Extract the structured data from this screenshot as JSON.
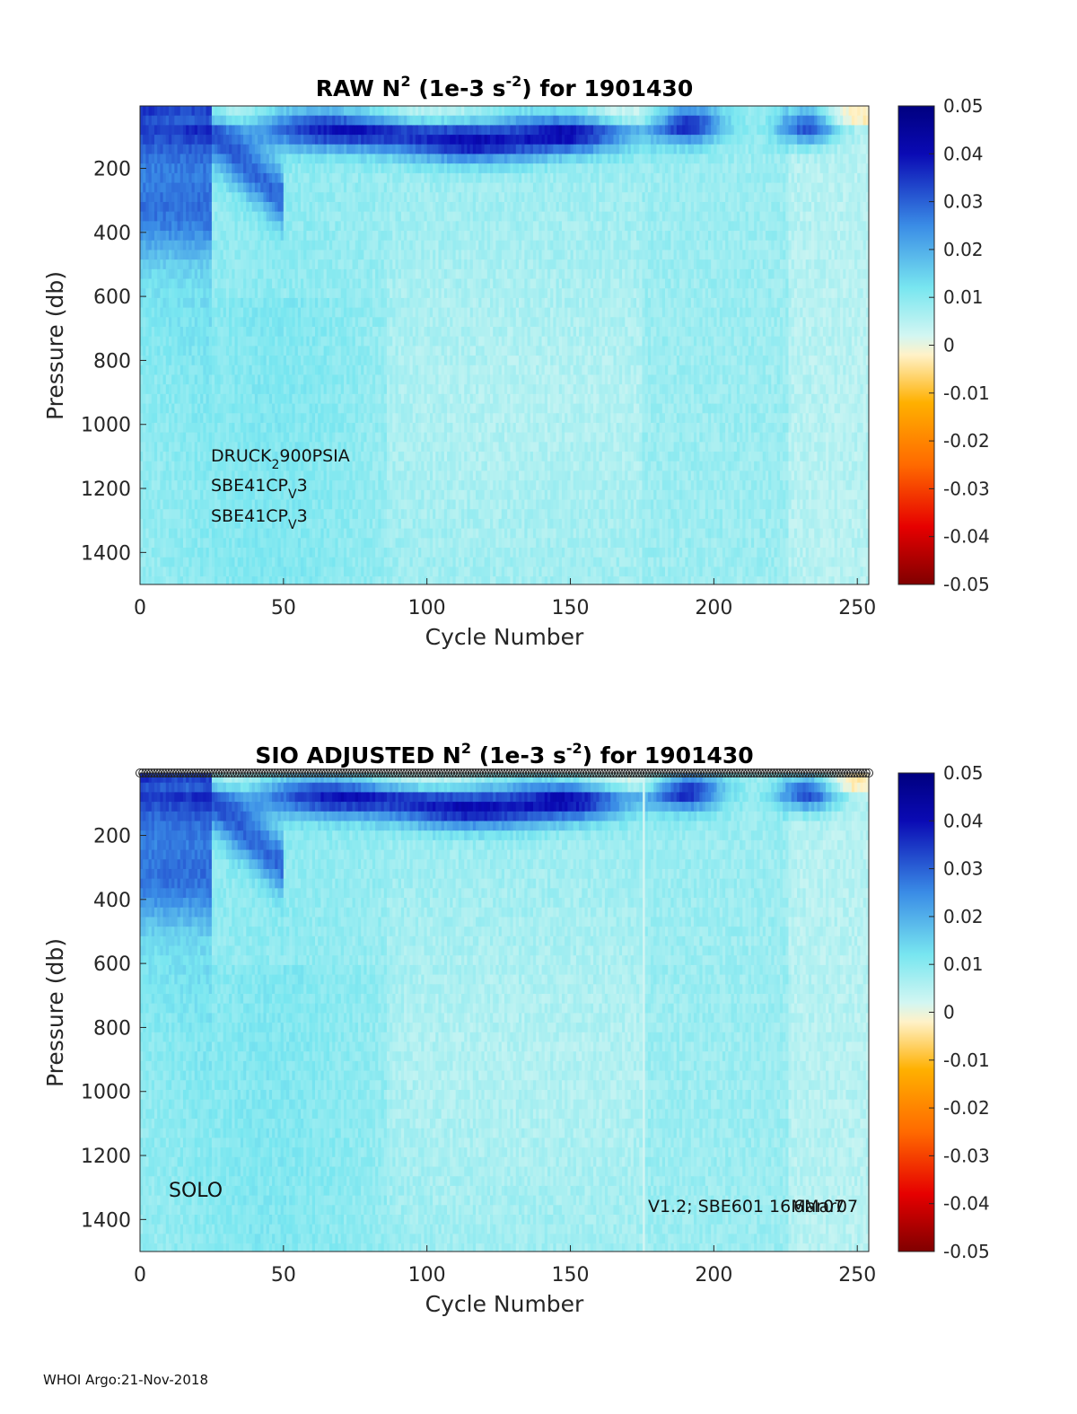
{
  "footer": "WHOI Argo:21-Nov-2018",
  "colors": {
    "colormap": [
      "#800000",
      "#e60000",
      "#ff6a00",
      "#ffb000",
      "#fff2c8",
      "#d2f6f2",
      "#78e6f0",
      "#3a8ce6",
      "#0a0ab4",
      "#000080"
    ]
  },
  "chart_data": [
    {
      "type": "heatmap",
      "title_main": "RAW N",
      "title_sup1": "2",
      "title_mid": " (1e-3 s",
      "title_sup2": "-2",
      "title_end": ") for 1901430",
      "xlabel": "Cycle Number",
      "ylabel": "Pressure (db)",
      "xlim": [
        0,
        254
      ],
      "ylim": [
        1500,
        5
      ],
      "xticks": [
        0,
        50,
        100,
        150,
        200,
        250
      ],
      "yticks": [
        200,
        400,
        600,
        800,
        1000,
        1200,
        1400
      ],
      "clim": [
        -0.05,
        0.05
      ],
      "colorbar_ticks": [
        "0.05",
        "0.04",
        "0.03",
        "0.02",
        "0.01",
        "0",
        "-0.01",
        "-0.02",
        "-0.03",
        "-0.04",
        "-0.05"
      ],
      "colorbar_values": [
        0.05,
        0.04,
        0.03,
        0.02,
        0.01,
        0,
        -0.01,
        -0.02,
        -0.03,
        -0.04,
        -0.05
      ],
      "annotations": {
        "line1_main": "DRUCK",
        "line1_sub": "2",
        "line1_end": "900PSIA",
        "line2_main": "SBE41CP",
        "line2_sub": "V",
        "line2_end": "3",
        "line3_main": "SBE41CP",
        "line3_sub": "V",
        "line3_end": "3"
      },
      "gap_cycles": [],
      "markers": false
    },
    {
      "type": "heatmap",
      "title_main": "SIO  ADJUSTED N",
      "title_sup1": "2",
      "title_mid": " (1e-3 s",
      "title_sup2": "-2",
      "title_end": ") for 1901430",
      "xlabel": "Cycle Number",
      "ylabel": "Pressure (db)",
      "xlim": [
        0,
        254
      ],
      "ylim": [
        1500,
        5
      ],
      "xticks": [
        0,
        50,
        100,
        150,
        200,
        250
      ],
      "yticks": [
        200,
        400,
        600,
        800,
        1000,
        1200,
        1400
      ],
      "clim": [
        -0.05,
        0.05
      ],
      "colorbar_ticks": [
        "0.05",
        "0.04",
        "0.03",
        "0.02",
        "0.01",
        "0",
        "-0.01",
        "-0.02",
        "-0.03",
        "-0.04",
        "-0.05"
      ],
      "colorbar_values": [
        0.05,
        0.04,
        0.03,
        0.02,
        0.01,
        0,
        -0.01,
        -0.02,
        -0.03,
        -0.04,
        -0.05
      ],
      "annotations": {
        "left": "SOLO",
        "right1": "V1.2; SBE601 16Mar07",
        "right2": "6Mar07"
      },
      "gap_cycles": [
        175
      ],
      "markers": true
    }
  ]
}
